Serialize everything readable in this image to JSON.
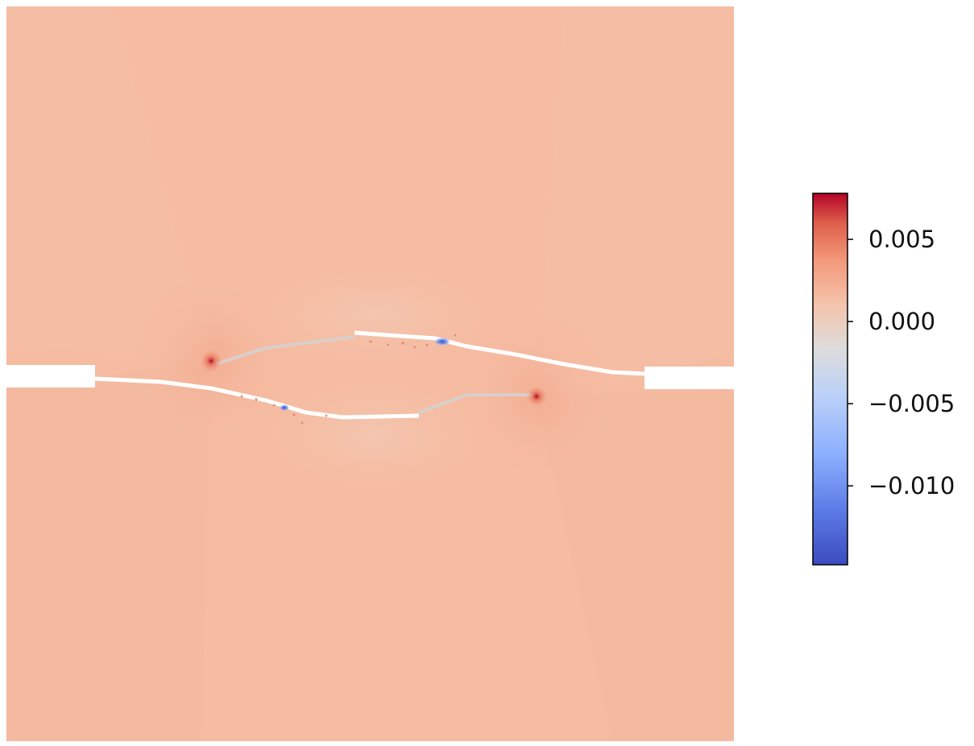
{
  "chart_data": {
    "type": "heatmap",
    "title": "",
    "xlabel": "",
    "ylabel": "",
    "grid": false,
    "field_background_value": 0.002,
    "hotspots": [
      {
        "label": "left-crack-tip",
        "value": 0.0078
      },
      {
        "label": "right-crack-tip",
        "value": 0.0075
      }
    ],
    "coldspots": [
      {
        "label": "upper-crack-face-spot",
        "value": -0.012
      },
      {
        "label": "lower-crack-face-spot",
        "value": -0.014
      }
    ],
    "colorbar": {
      "colormap": "coolwarm",
      "vmin": -0.0148,
      "vmax": 0.0078,
      "ticks": [
        0.005,
        0.0,
        -0.005,
        -0.01
      ],
      "tick_labels": [
        "0.005",
        "0.000",
        "−0.005",
        "−0.010"
      ],
      "placement": "right"
    },
    "colors": {
      "min": "#3b4cc0",
      "mid": "#dddcdc",
      "max": "#b40426",
      "field": "#f5bca2"
    }
  }
}
